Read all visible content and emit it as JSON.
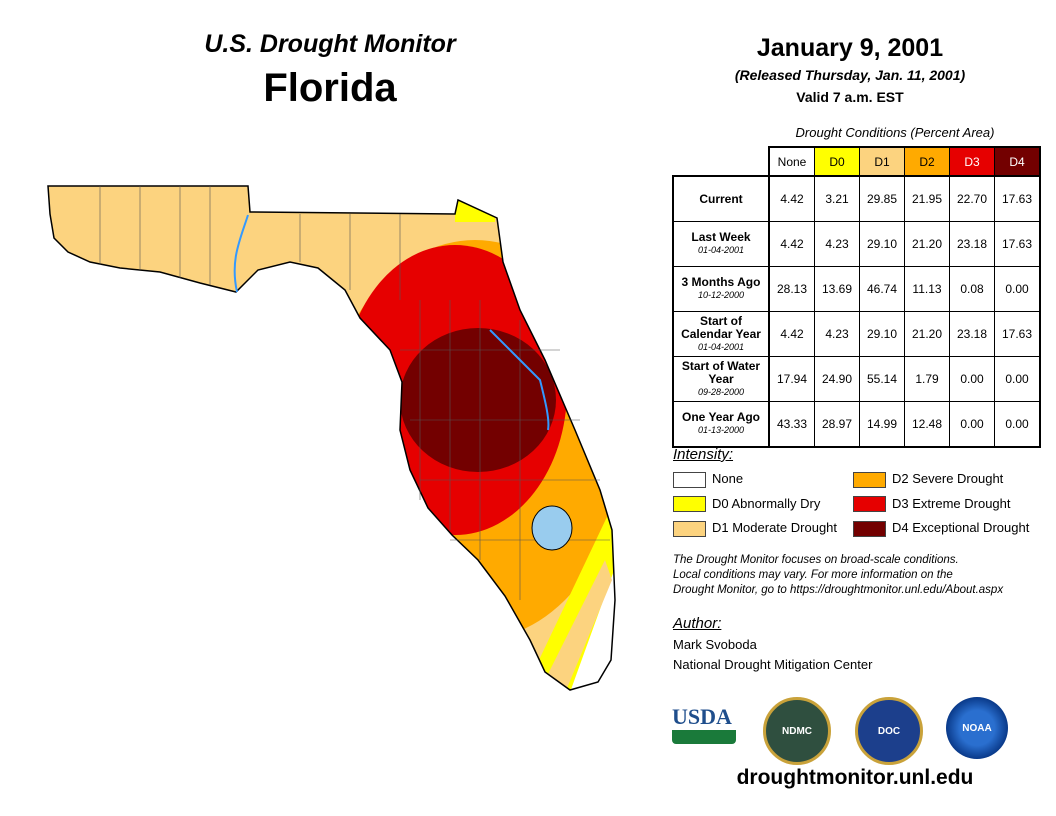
{
  "header": {
    "title": "U.S. Drought Monitor",
    "state": "Florida",
    "date": "January 9, 2001",
    "released": "(Released Thursday, Jan. 11, 2001)",
    "valid": "Valid 7 a.m. EST"
  },
  "table": {
    "caption": "Drought Conditions (Percent Area)",
    "columns": [
      "None",
      "D0",
      "D1",
      "D2",
      "D3",
      "D4"
    ],
    "rows": [
      {
        "label": "Current",
        "date": "",
        "values": [
          "4.42",
          "3.21",
          "29.85",
          "21.95",
          "22.70",
          "17.63"
        ]
      },
      {
        "label": "Last Week",
        "date": "01-04-2001",
        "values": [
          "4.42",
          "4.23",
          "29.10",
          "21.20",
          "23.18",
          "17.63"
        ]
      },
      {
        "label": "3 Months Ago",
        "date": "10-12-2000",
        "values": [
          "28.13",
          "13.69",
          "46.74",
          "11.13",
          "0.08",
          "0.00"
        ]
      },
      {
        "label": "Start of Calendar Year",
        "date": "01-04-2001",
        "values": [
          "4.42",
          "4.23",
          "29.10",
          "21.20",
          "23.18",
          "17.63"
        ]
      },
      {
        "label": "Start of Water Year",
        "date": "09-28-2000",
        "values": [
          "17.94",
          "24.90",
          "55.14",
          "1.79",
          "0.00",
          "0.00"
        ]
      },
      {
        "label": "One Year Ago",
        "date": "01-13-2000",
        "values": [
          "43.33",
          "28.97",
          "14.99",
          "12.48",
          "0.00",
          "0.00"
        ]
      }
    ]
  },
  "legend": {
    "title": "Intensity:",
    "items": [
      {
        "label": "None",
        "color": "#ffffff"
      },
      {
        "label": "D0 Abnormally Dry",
        "color": "#ffff00"
      },
      {
        "label": "D1 Moderate Drought",
        "color": "#fcd37f"
      },
      {
        "label": "D2 Severe Drought",
        "color": "#ffaa00"
      },
      {
        "label": "D3 Extreme Drought",
        "color": "#e60000"
      },
      {
        "label": "D4 Exceptional Drought",
        "color": "#730000"
      }
    ]
  },
  "note": [
    "The Drought Monitor focuses on broad-scale conditions.",
    "Local conditions may vary. For more information on the",
    "Drought Monitor, go to https://droughtmonitor.unl.edu/About.aspx"
  ],
  "author": {
    "title": "Author:",
    "name": "Mark Svoboda",
    "org": "National Drought Mitigation Center"
  },
  "logos": {
    "usda": "USDA",
    "ndmc": "NDMC",
    "doc": "DOC",
    "noaa": "NOAA"
  },
  "url": "droughtmonitor.unl.edu"
}
